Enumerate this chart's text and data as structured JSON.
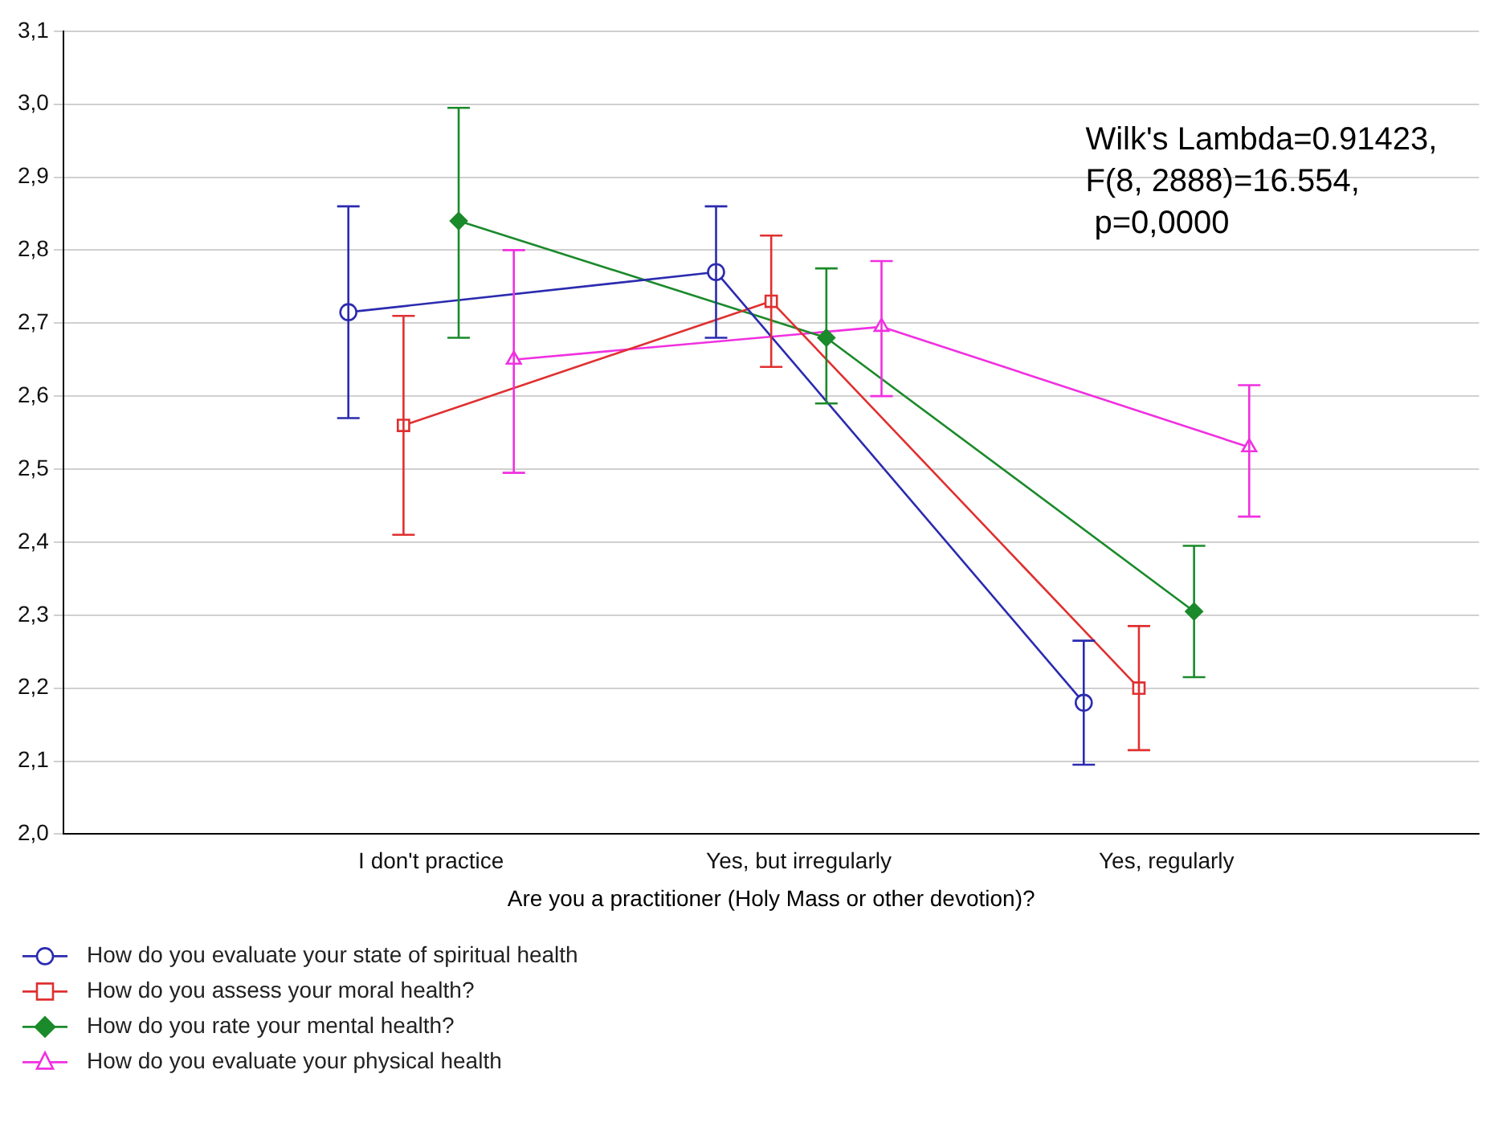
{
  "chart_data": {
    "type": "line",
    "xlabel": "Are you a practitioner (Holy Mass or other devotion)?",
    "categories": [
      "I don't practice",
      "Yes, but irregularly",
      "Yes, regularly"
    ],
    "series": [
      {
        "name": "How do you evaluate your state of spiritual health",
        "color": "#2b2bb0",
        "marker": "circle",
        "values": [
          2.715,
          2.77,
          2.18
        ],
        "errors": [
          [
            2.57,
            2.86
          ],
          [
            2.68,
            2.86
          ],
          [
            2.095,
            2.265
          ]
        ]
      },
      {
        "name": "How do you assess your moral health?",
        "color": "#e03030",
        "marker": "square",
        "values": [
          2.56,
          2.73,
          2.2
        ],
        "errors": [
          [
            2.41,
            2.71
          ],
          [
            2.64,
            2.82
          ],
          [
            2.115,
            2.285
          ]
        ]
      },
      {
        "name": "How do you rate your mental health?",
        "color": "#1a8a2a",
        "marker": "diamond",
        "values": [
          2.84,
          2.68,
          2.305
        ],
        "errors": [
          [
            2.68,
            2.995
          ],
          [
            2.59,
            2.775
          ],
          [
            2.215,
            2.395
          ]
        ]
      },
      {
        "name": "How do you evaluate your physical health",
        "color": "#f030e0",
        "marker": "triangle",
        "values": [
          2.65,
          2.695,
          2.53
        ],
        "errors": [
          [
            2.495,
            2.8
          ],
          [
            2.6,
            2.785
          ],
          [
            2.435,
            2.615
          ]
        ]
      }
    ],
    "ylim": [
      2.0,
      3.1
    ],
    "yticks": [
      {
        "value": 2.0,
        "label": "2,0"
      },
      {
        "value": 2.1,
        "label": "2,1"
      },
      {
        "value": 2.2,
        "label": "2,2"
      },
      {
        "value": 2.3,
        "label": "2,3"
      },
      {
        "value": 2.4,
        "label": "2,4"
      },
      {
        "value": 2.5,
        "label": "2,5"
      },
      {
        "value": 2.6,
        "label": "2,6"
      },
      {
        "value": 2.7,
        "label": "2,7"
      },
      {
        "value": 2.8,
        "label": "2,8"
      },
      {
        "value": 2.9,
        "label": "2,9"
      },
      {
        "value": 3.0,
        "label": "3,0"
      },
      {
        "value": 3.1,
        "label": "3,1"
      }
    ],
    "grid": "y",
    "legend": "bottom left",
    "line_style": "solid",
    "annotations": [
      "Wilk's Lambda=0.91423,\nF(8, 2888)=16.554,\n p=0,0000"
    ]
  }
}
